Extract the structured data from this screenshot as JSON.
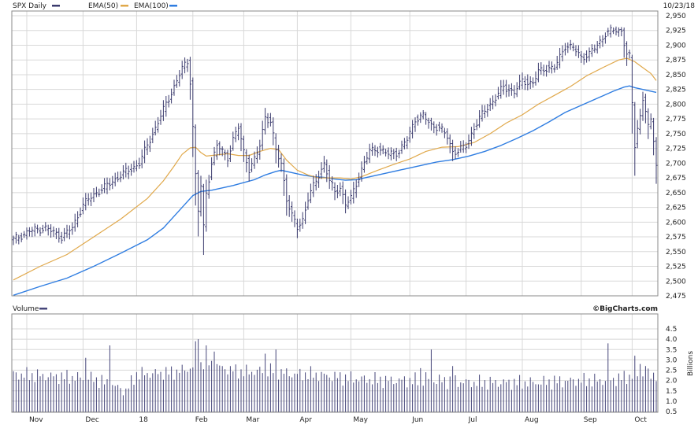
{
  "header": {
    "symbol_label": "SPX Daily",
    "ema50_label": "EMA(50)",
    "ema100_label": "EMA(100)",
    "date": "10/23/18"
  },
  "volume_panel": {
    "label": "Volume",
    "credit": "©BigCharts.com",
    "unit_label": "Billions"
  },
  "colors": {
    "price": "#3b3b6e",
    "ema50": "#e0a84a",
    "ema100": "#2f7de1",
    "volume": "#46467a",
    "grid": "#d8d8d8",
    "frame": "#8a8a8a"
  },
  "chart_data": [
    {
      "type": "line",
      "title": "SPX Daily",
      "x_axis": {
        "range": [
          0,
          240
        ],
        "months": [
          {
            "label": "Nov",
            "x": 5
          },
          {
            "label": "Dec",
            "x": 26
          },
          {
            "label": "18",
            "x": 46
          },
          {
            "label": "Feb",
            "x": 67
          },
          {
            "label": "Mar",
            "x": 86
          },
          {
            "label": "Apr",
            "x": 106
          },
          {
            "label": "May",
            "x": 126
          },
          {
            "label": "Jun",
            "x": 148
          },
          {
            "label": "Jul",
            "x": 169
          },
          {
            "label": "Aug",
            "x": 190
          },
          {
            "label": "Sep",
            "x": 212
          },
          {
            "label": "Oct",
            "x": 231
          }
        ]
      },
      "y_axis": {
        "range": [
          2475,
          2950
        ],
        "ticks": [
          2475,
          2500,
          2525,
          2550,
          2575,
          2600,
          2625,
          2650,
          2675,
          2700,
          2725,
          2750,
          2775,
          2800,
          2825,
          2850,
          2875,
          2900,
          2925,
          2950
        ],
        "tick_labels": [
          "2,475",
          "2,500",
          "2,525",
          "2,550",
          "2,575",
          "2,600",
          "2,625",
          "2,650",
          "2,675",
          "2,700",
          "2,725",
          "2,750",
          "2,775",
          "2,800",
          "2,825",
          "2,850",
          "2,875",
          "2,900",
          "2,925",
          "2,950"
        ]
      },
      "grid": true,
      "series": [
        {
          "name": "SPX Daily",
          "style": "ohlc-bars",
          "points": [
            [
              0,
              2570
            ],
            [
              6,
              2585
            ],
            [
              12,
              2590
            ],
            [
              18,
              2575
            ],
            [
              22,
              2590
            ],
            [
              26,
              2630
            ],
            [
              31,
              2650
            ],
            [
              36,
              2665
            ],
            [
              40,
              2680
            ],
            [
              44,
              2690
            ],
            [
              47,
              2700
            ],
            [
              52,
              2750
            ],
            [
              56,
              2790
            ],
            [
              60,
              2830
            ],
            [
              63,
              2860
            ],
            [
              65,
              2872
            ],
            [
              66,
              2840
            ],
            [
              67,
              2762
            ],
            [
              68,
              2680
            ],
            [
              69,
              2620
            ],
            [
              70,
              2660
            ],
            [
              71,
              2590
            ],
            [
              72,
              2650
            ],
            [
              74,
              2700
            ],
            [
              76,
              2730
            ],
            [
              78,
              2720
            ],
            [
              80,
              2710
            ],
            [
              82,
              2740
            ],
            [
              84,
              2760
            ],
            [
              86,
              2720
            ],
            [
              88,
              2690
            ],
            [
              90,
              2705
            ],
            [
              92,
              2730
            ],
            [
              94,
              2780
            ],
            [
              96,
              2770
            ],
            [
              98,
              2720
            ],
            [
              100,
              2700
            ],
            [
              102,
              2640
            ],
            [
              104,
              2610
            ],
            [
              106,
              2590
            ],
            [
              108,
              2605
            ],
            [
              110,
              2640
            ],
            [
              112,
              2660
            ],
            [
              114,
              2680
            ],
            [
              116,
              2700
            ],
            [
              118,
              2670
            ],
            [
              120,
              2650
            ],
            [
              122,
              2660
            ],
            [
              124,
              2630
            ],
            [
              126,
              2640
            ],
            [
              128,
              2665
            ],
            [
              130,
              2690
            ],
            [
              133,
              2720
            ],
            [
              136,
              2725
            ],
            [
              140,
              2715
            ],
            [
              144,
              2720
            ],
            [
              147,
              2740
            ],
            [
              150,
              2775
            ],
            [
              153,
              2780
            ],
            [
              156,
              2765
            ],
            [
              159,
              2760
            ],
            [
              162,
              2745
            ],
            [
              164,
              2720
            ],
            [
              166,
              2720
            ],
            [
              169,
              2730
            ],
            [
              172,
              2760
            ],
            [
              176,
              2790
            ],
            [
              180,
              2810
            ],
            [
              183,
              2830
            ],
            [
              187,
              2820
            ],
            [
              190,
              2840
            ],
            [
              194,
              2835
            ],
            [
              196,
              2855
            ],
            [
              199,
              2862
            ],
            [
              202,
              2860
            ],
            [
              204,
              2880
            ],
            [
              206,
              2900
            ],
            [
              209,
              2895
            ],
            [
              212,
              2880
            ],
            [
              215,
              2885
            ],
            [
              218,
              2900
            ],
            [
              221,
              2920
            ],
            [
              224,
              2925
            ],
            [
              227,
              2925
            ],
            [
              228,
              2905
            ],
            [
              229,
              2885
            ],
            [
              230,
              2880
            ],
            [
              231,
              2800
            ],
            [
              232,
              2730
            ],
            [
              233,
              2760
            ],
            [
              234,
              2780
            ],
            [
              235,
              2810
            ],
            [
              236,
              2790
            ],
            [
              237,
              2760
            ],
            [
              238,
              2770
            ],
            [
              239,
              2740
            ],
            [
              240,
              2700
            ]
          ]
        },
        {
          "name": "EMA(50)",
          "style": "line",
          "points": [
            [
              0,
              2502
            ],
            [
              10,
              2525
            ],
            [
              20,
              2545
            ],
            [
              30,
              2575
            ],
            [
              40,
              2605
            ],
            [
              50,
              2640
            ],
            [
              56,
              2670
            ],
            [
              60,
              2695
            ],
            [
              63,
              2715
            ],
            [
              66,
              2726
            ],
            [
              68,
              2727
            ],
            [
              70,
              2718
            ],
            [
              72,
              2712
            ],
            [
              76,
              2714
            ],
            [
              80,
              2716
            ],
            [
              84,
              2713
            ],
            [
              88,
              2713
            ],
            [
              92,
              2720
            ],
            [
              96,
              2725
            ],
            [
              99,
              2723
            ],
            [
              102,
              2705
            ],
            [
              106,
              2688
            ],
            [
              110,
              2680
            ],
            [
              114,
              2675
            ],
            [
              118,
              2675
            ],
            [
              122,
              2675
            ],
            [
              126,
              2673
            ],
            [
              130,
              2677
            ],
            [
              136,
              2688
            ],
            [
              142,
              2698
            ],
            [
              148,
              2707
            ],
            [
              154,
              2720
            ],
            [
              160,
              2727
            ],
            [
              166,
              2728
            ],
            [
              172,
              2735
            ],
            [
              178,
              2750
            ],
            [
              184,
              2768
            ],
            [
              190,
              2782
            ],
            [
              196,
              2800
            ],
            [
              202,
              2815
            ],
            [
              208,
              2830
            ],
            [
              214,
              2848
            ],
            [
              220,
              2862
            ],
            [
              226,
              2875
            ],
            [
              229,
              2878
            ],
            [
              232,
              2872
            ],
            [
              235,
              2862
            ],
            [
              238,
              2852
            ],
            [
              240,
              2840
            ]
          ]
        },
        {
          "name": "EMA(100)",
          "style": "line",
          "points": [
            [
              0,
              2476
            ],
            [
              10,
              2491
            ],
            [
              20,
              2505
            ],
            [
              30,
              2525
            ],
            [
              40,
              2547
            ],
            [
              50,
              2570
            ],
            [
              56,
              2590
            ],
            [
              60,
              2610
            ],
            [
              64,
              2630
            ],
            [
              67,
              2645
            ],
            [
              70,
              2652
            ],
            [
              74,
              2654
            ],
            [
              78,
              2658
            ],
            [
              82,
              2662
            ],
            [
              86,
              2667
            ],
            [
              90,
              2672
            ],
            [
              94,
              2680
            ],
            [
              98,
              2686
            ],
            [
              100,
              2688
            ],
            [
              104,
              2684
            ],
            [
              108,
              2680
            ],
            [
              112,
              2677
            ],
            [
              116,
              2676
            ],
            [
              120,
              2673
            ],
            [
              124,
              2671
            ],
            [
              128,
              2672
            ],
            [
              134,
              2678
            ],
            [
              140,
              2684
            ],
            [
              146,
              2690
            ],
            [
              152,
              2696
            ],
            [
              158,
              2702
            ],
            [
              164,
              2706
            ],
            [
              170,
              2712
            ],
            [
              176,
              2720
            ],
            [
              182,
              2730
            ],
            [
              188,
              2742
            ],
            [
              194,
              2755
            ],
            [
              200,
              2770
            ],
            [
              206,
              2786
            ],
            [
              212,
              2798
            ],
            [
              218,
              2810
            ],
            [
              224,
              2822
            ],
            [
              228,
              2829
            ],
            [
              230,
              2831
            ],
            [
              232,
              2828
            ],
            [
              236,
              2824
            ],
            [
              240,
              2820
            ]
          ]
        }
      ]
    },
    {
      "type": "bar",
      "title": "Volume",
      "ylabel": "Billions",
      "y_axis": {
        "range": [
          0.5,
          4.5
        ],
        "ticks": [
          0.5,
          1.0,
          1.5,
          2.0,
          2.5,
          3.0,
          3.5,
          4.0,
          4.5
        ],
        "tick_labels": [
          "0.5",
          "1.0",
          "1.5",
          "2.0",
          "2.5",
          "3.0",
          "3.5",
          "4.0",
          "4.5"
        ]
      },
      "grid": true,
      "baseline": [
        [
          0,
          2.3
        ],
        [
          30,
          2.1
        ],
        [
          36,
          1.8
        ],
        [
          42,
          1.5
        ],
        [
          46,
          2.3
        ],
        [
          60,
          2.4
        ],
        [
          66,
          2.6
        ],
        [
          72,
          2.9
        ],
        [
          78,
          2.6
        ],
        [
          86,
          2.4
        ],
        [
          96,
          2.5
        ],
        [
          104,
          2.3
        ],
        [
          112,
          2.3
        ],
        [
          126,
          2.1
        ],
        [
          140,
          2.0
        ],
        [
          150,
          2.0
        ],
        [
          160,
          2.0
        ],
        [
          170,
          1.9
        ],
        [
          182,
          1.9
        ],
        [
          196,
          1.9
        ],
        [
          210,
          2.0
        ],
        [
          222,
          2.0
        ],
        [
          230,
          2.2
        ],
        [
          240,
          2.3
        ]
      ],
      "spikes": [
        [
          27,
          3.1
        ],
        [
          36,
          3.7
        ],
        [
          68,
          3.9
        ],
        [
          69,
          4.0
        ],
        [
          72,
          3.7
        ],
        [
          75,
          3.4
        ],
        [
          94,
          3.3
        ],
        [
          98,
          3.5
        ],
        [
          152,
          2.6
        ],
        [
          154,
          2.4
        ],
        [
          156,
          3.5
        ],
        [
          164,
          2.7
        ],
        [
          222,
          3.8
        ],
        [
          232,
          3.2
        ],
        [
          234,
          2.8
        ],
        [
          236,
          2.7
        ]
      ]
    }
  ]
}
